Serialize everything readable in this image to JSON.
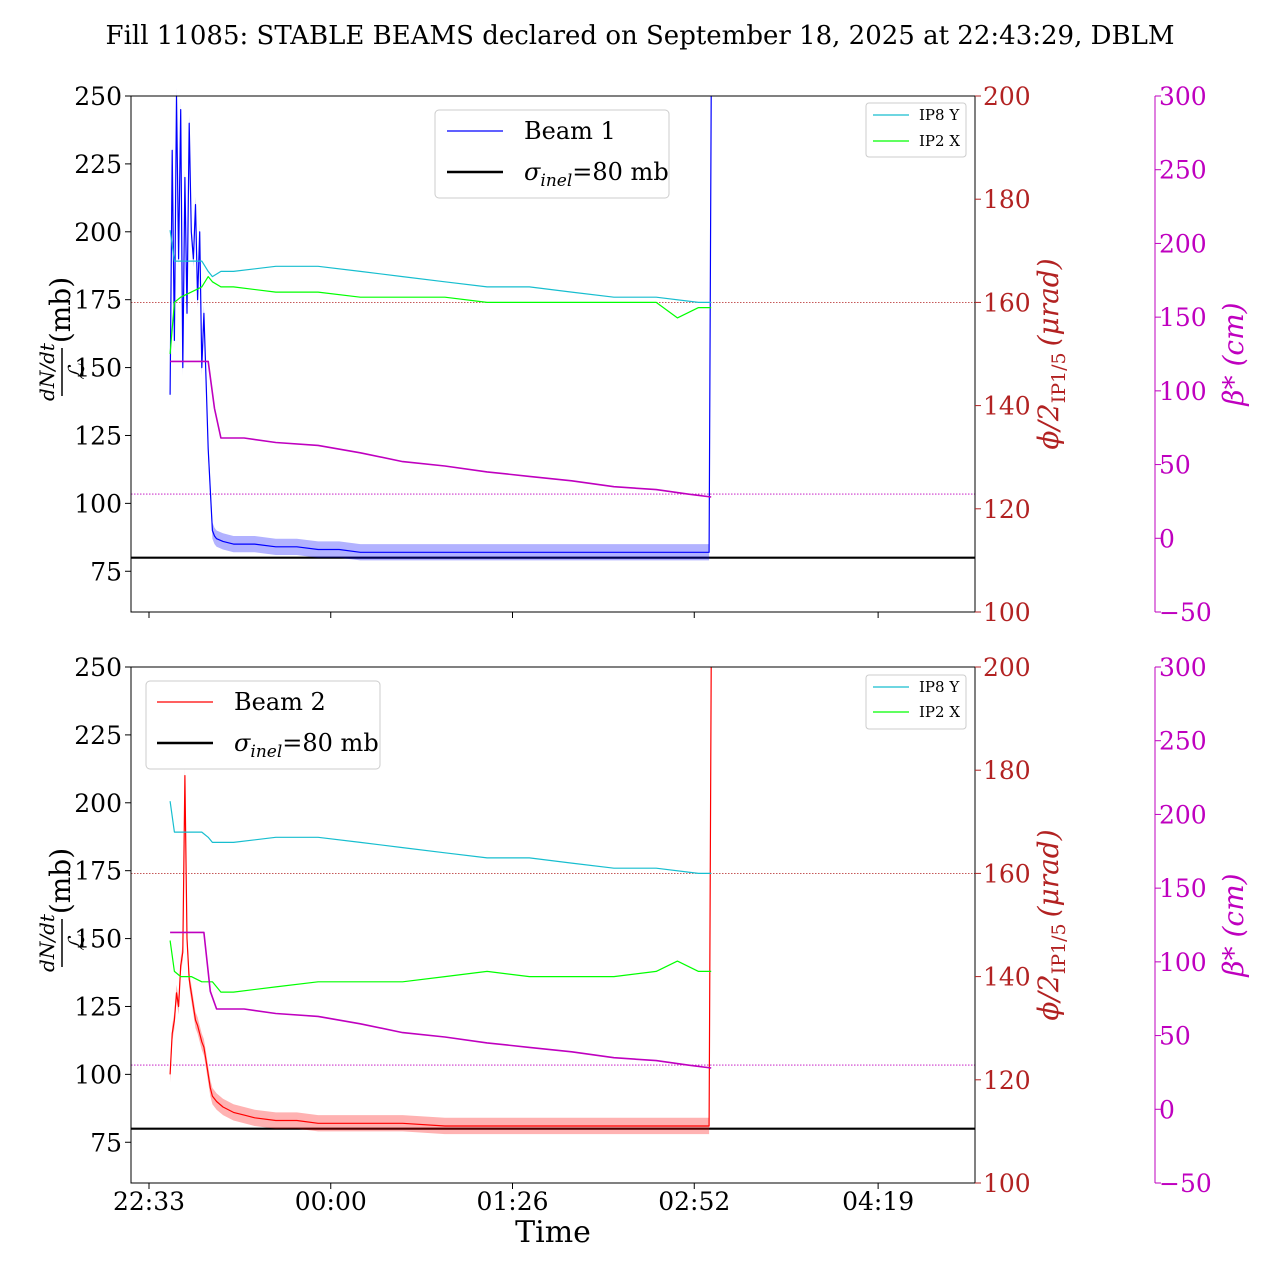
{
  "figure_title": "Fill 11085: STABLE BEAMS declared on September 18, 2025 at 22:43:29, DBLM",
  "x_axis_label": "Time",
  "x_ticks": [
    "22:33",
    "00:00",
    "01:26",
    "02:52",
    "04:19"
  ],
  "colors": {
    "beam1": "#0000ff",
    "beam2": "#ff0000",
    "ip8y": "#17becf",
    "ip2x": "#00ff00",
    "beta": "#bf00bf",
    "crossing_axis": "#b22222",
    "sigma_ref": "#000000"
  },
  "panels": [
    {
      "beam_label": "Beam 1",
      "sigma_label": "σ",
      "sigma_sub": "inel",
      "sigma_value": "=80 mb",
      "legend_ip8": "IP8 Y",
      "legend_ip2": "IP2 X",
      "ylabel_left_num": "dN/dt",
      "ylabel_left_den": "ℒ",
      "ylabel_left_unit": "(mb)",
      "ylabel_right1": "ϕ/2",
      "ylabel_right1_sub": "IP1/5",
      "ylabel_right1_unit": "(μrad)",
      "ylabel_right2": "β* (cm)",
      "left_ticks": [
        "250",
        "225",
        "200",
        "175",
        "150",
        "125",
        "100",
        "75"
      ],
      "right1_ticks": [
        "200",
        "180",
        "160",
        "140",
        "120",
        "100"
      ],
      "right2_ticks": [
        "300",
        "250",
        "200",
        "150",
        "100",
        "50",
        "0",
        "−50"
      ]
    },
    {
      "beam_label": "Beam 2",
      "sigma_label": "σ",
      "sigma_sub": "inel",
      "sigma_value": "=80 mb",
      "legend_ip8": "IP8 Y",
      "legend_ip2": "IP2 X",
      "ylabel_left_num": "dN/dt",
      "ylabel_left_den": "ℒ",
      "ylabel_left_unit": "(mb)",
      "ylabel_right1": "ϕ/2",
      "ylabel_right1_sub": "IP1/5",
      "ylabel_right1_unit": "(μrad)",
      "ylabel_right2": "β* (cm)",
      "left_ticks": [
        "250",
        "225",
        "200",
        "175",
        "150",
        "125",
        "100",
        "75"
      ],
      "right1_ticks": [
        "200",
        "180",
        "160",
        "140",
        "120",
        "100"
      ],
      "right2_ticks": [
        "300",
        "250",
        "200",
        "150",
        "100",
        "50",
        "0",
        "−50"
      ]
    }
  ],
  "chart_data": [
    {
      "type": "line",
      "title": "Fill 11085: STABLE BEAMS declared on September 18, 2025 at 22:43:29, DBLM",
      "xlabel": "Time",
      "x_unit": "minutes since 22:33",
      "xlim": [
        -11,
        268
      ],
      "x_tick_labels": [
        "22:33",
        "00:00",
        "01:26",
        "02:52",
        "04:19"
      ],
      "x_tick_positions": [
        0,
        86,
        172,
        258,
        345
      ],
      "ylim_left": [
        60,
        250
      ],
      "ylim_right1": [
        100,
        200
      ],
      "ylim_right2": [
        -50,
        300
      ],
      "legend_main": "upper center",
      "legend_ip": "upper right",
      "grid": false,
      "reference_lines": [
        {
          "name": "σinel=80 mb",
          "axis": "left",
          "y": 80
        },
        {
          "axis": "right1",
          "y": 160,
          "style": "dotted"
        },
        {
          "axis": "right2",
          "y": 30,
          "style": "dotted"
        }
      ],
      "series": [
        {
          "name": "Beam 1",
          "axis": "left",
          "x": [
            10,
            11,
            12,
            13,
            14,
            15,
            16,
            17,
            18,
            19,
            20,
            21,
            22,
            23,
            24,
            25,
            26,
            27,
            28,
            29,
            30,
            31,
            32,
            35,
            40,
            50,
            60,
            70,
            80,
            90,
            100,
            120,
            140,
            160,
            180,
            200,
            220,
            240,
            255,
            265,
            266
          ],
          "y": [
            140,
            230,
            160,
            250,
            190,
            245,
            150,
            220,
            170,
            240,
            200,
            190,
            210,
            175,
            200,
            150,
            170,
            145,
            120,
            105,
            90,
            88,
            87,
            86,
            85,
            85,
            84,
            84,
            83,
            83,
            82,
            82,
            82,
            82,
            82,
            82,
            82,
            82,
            82,
            82,
            250
          ]
        },
        {
          "name": "IP8 Y",
          "axis": "right1",
          "x": [
            10,
            12,
            15,
            20,
            25,
            28,
            30,
            34,
            40,
            60,
            80,
            100,
            120,
            140,
            160,
            180,
            200,
            220,
            240,
            260,
            266
          ],
          "y": [
            174,
            168,
            168,
            168,
            168,
            166,
            165,
            166,
            166,
            167,
            167,
            166,
            165,
            164,
            163,
            163,
            162,
            161,
            161,
            160,
            160
          ]
        },
        {
          "name": "IP2 X",
          "axis": "right1",
          "x": [
            10,
            12,
            15,
            20,
            25,
            28,
            30,
            34,
            40,
            60,
            80,
            100,
            120,
            140,
            160,
            180,
            200,
            220,
            240,
            250,
            260,
            266
          ],
          "y": [
            150,
            160,
            161,
            162,
            163,
            165,
            164,
            163,
            163,
            162,
            162,
            161,
            161,
            161,
            160,
            160,
            160,
            160,
            160,
            157,
            159,
            159
          ]
        },
        {
          "name": "β*",
          "axis": "right2",
          "x": [
            10,
            28,
            31,
            34,
            45,
            60,
            80,
            100,
            120,
            140,
            160,
            180,
            200,
            220,
            240,
            255,
            266
          ],
          "y": [
            120,
            120,
            88,
            68,
            68,
            65,
            63,
            58,
            52,
            49,
            45,
            42,
            39,
            35,
            33,
            30,
            28
          ]
        }
      ]
    },
    {
      "type": "line",
      "xlabel": "Time",
      "x_unit": "minutes since 22:33",
      "xlim": [
        -11,
        268
      ],
      "x_tick_labels": [
        "22:33",
        "00:00",
        "01:26",
        "02:52",
        "04:19"
      ],
      "x_tick_positions": [
        0,
        86,
        172,
        258,
        345
      ],
      "ylim_left": [
        60,
        250
      ],
      "ylim_right1": [
        100,
        200
      ],
      "ylim_right2": [
        -50,
        300
      ],
      "legend_main": "upper left",
      "legend_ip": "upper right",
      "grid": false,
      "reference_lines": [
        {
          "name": "σinel=80 mb",
          "axis": "left",
          "y": 80
        },
        {
          "axis": "right1",
          "y": 160,
          "style": "dotted"
        },
        {
          "axis": "right2",
          "y": 30,
          "style": "dotted"
        }
      ],
      "series": [
        {
          "name": "Beam 2",
          "axis": "left",
          "x": [
            10,
            11,
            12,
            13,
            14,
            15,
            16,
            17,
            18,
            19,
            20,
            21,
            22,
            23,
            24,
            25,
            26,
            27,
            28,
            29,
            30,
            32,
            35,
            40,
            45,
            50,
            60,
            70,
            80,
            90,
            100,
            120,
            140,
            160,
            180,
            200,
            220,
            240,
            255,
            265,
            266
          ],
          "y": [
            100,
            115,
            120,
            130,
            125,
            140,
            145,
            210,
            150,
            135,
            130,
            125,
            120,
            118,
            115,
            112,
            110,
            105,
            100,
            95,
            92,
            90,
            88,
            86,
            85,
            84,
            83,
            83,
            82,
            82,
            82,
            82,
            81,
            81,
            81,
            81,
            81,
            81,
            81,
            81,
            250
          ]
        },
        {
          "name": "IP8 Y",
          "axis": "right1",
          "x": [
            10,
            12,
            15,
            20,
            25,
            28,
            30,
            34,
            40,
            60,
            80,
            100,
            120,
            140,
            160,
            180,
            200,
            220,
            240,
            260,
            266
          ],
          "y": [
            174,
            168,
            168,
            168,
            168,
            167,
            166,
            166,
            166,
            167,
            167,
            166,
            165,
            164,
            163,
            163,
            162,
            161,
            161,
            160,
            160
          ]
        },
        {
          "name": "IP2 X",
          "axis": "right1",
          "x": [
            10,
            12,
            15,
            20,
            25,
            28,
            30,
            34,
            40,
            60,
            80,
            100,
            120,
            140,
            160,
            180,
            200,
            220,
            240,
            250,
            260,
            266
          ],
          "y": [
            147,
            141,
            140,
            140,
            139,
            139,
            139,
            137,
            137,
            138,
            139,
            139,
            139,
            140,
            141,
            140,
            140,
            140,
            141,
            143,
            141,
            141
          ]
        },
        {
          "name": "β*",
          "axis": "right2",
          "x": [
            10,
            26,
            29,
            32,
            45,
            60,
            80,
            100,
            120,
            140,
            160,
            180,
            200,
            220,
            240,
            255,
            266
          ],
          "y": [
            120,
            120,
            80,
            68,
            68,
            65,
            63,
            58,
            52,
            49,
            45,
            42,
            39,
            35,
            33,
            30,
            28
          ]
        }
      ]
    }
  ]
}
